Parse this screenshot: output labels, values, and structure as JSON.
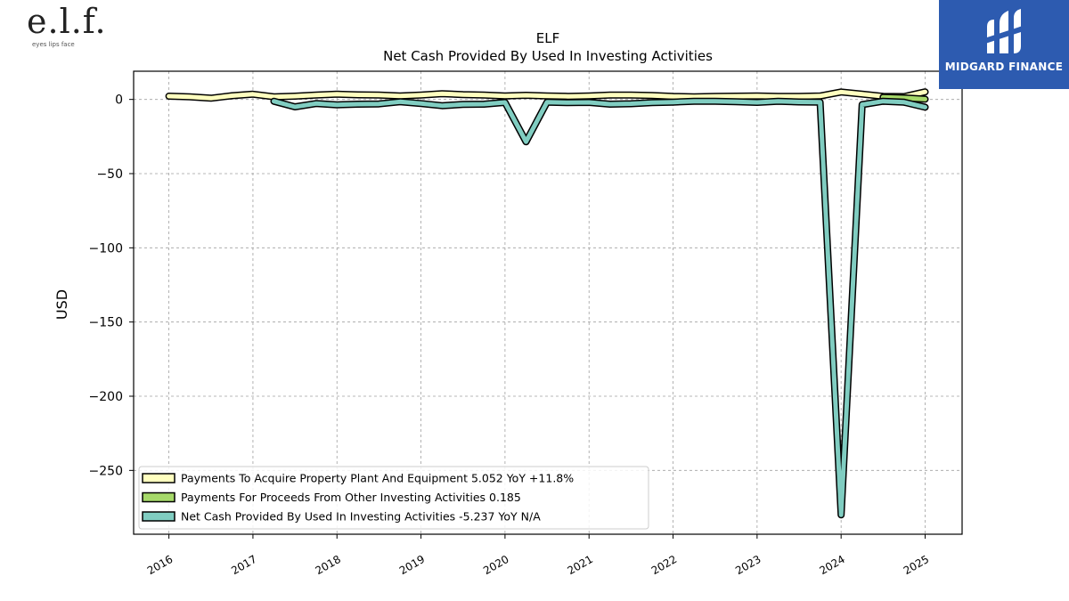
{
  "brand": {
    "company_logo": "e.l.f.",
    "company_tagline": "eyes lips face",
    "publisher_logo": "MIDGARD FINANCE"
  },
  "chart_data": {
    "type": "line",
    "title": "ELF",
    "subtitle": "Net Cash Provided By Used In Investing Activities",
    "ylabel": "USD",
    "xlabel": "",
    "ylim": [
      -293,
      19
    ],
    "xlim": [
      2015.58,
      2025.44
    ],
    "yticks": [
      0,
      -50,
      -100,
      -150,
      -200,
      -250
    ],
    "xticks": [
      2016,
      2017,
      2018,
      2019,
      2020,
      2021,
      2022,
      2023,
      2024,
      2025
    ],
    "grid": true,
    "legend_position": "lower-left",
    "series": [
      {
        "name": "Payments To Acquire Property Plant And Equipment",
        "legend": "Payments To Acquire Property Plant And Equipment  5.052 YoY +11.8%",
        "color": "#ffffbf",
        "x": [
          2016.0,
          2016.25,
          2016.5,
          2016.75,
          2017.0,
          2017.25,
          2017.5,
          2017.75,
          2018.0,
          2018.25,
          2018.5,
          2018.75,
          2019.0,
          2019.25,
          2019.5,
          2019.75,
          2020.0,
          2020.25,
          2020.5,
          2020.75,
          2021.0,
          2021.25,
          2021.5,
          2021.75,
          2022.0,
          2022.25,
          2022.5,
          2022.75,
          2023.0,
          2023.25,
          2023.5,
          2023.75,
          2024.0,
          2024.25,
          2024.5,
          2024.75,
          2025.0
        ],
        "y": [
          2.2,
          1.8,
          0.8,
          2.5,
          3.5,
          1.8,
          2.2,
          2.9,
          3.5,
          3.1,
          3.0,
          2.4,
          3.0,
          3.9,
          3.2,
          3.0,
          2.4,
          2.8,
          2.3,
          2.1,
          2.4,
          2.9,
          3.0,
          2.6,
          2.0,
          1.8,
          2.0,
          2.2,
          2.4,
          2.1,
          2.1,
          2.3,
          5.0,
          3.6,
          2.1,
          1.9,
          5.1
        ]
      },
      {
        "name": "Payments For Proceeds From Other Investing Activities",
        "legend": "Payments For Proceeds From Other Investing Activities  0.185",
        "color": "#a6d96a",
        "x": [
          2024.5,
          2024.75,
          2025.0
        ],
        "y": [
          1.5,
          1.0,
          0.185
        ]
      },
      {
        "name": "Net Cash Provided By Used In Investing Activities",
        "legend": "Net Cash Provided By Used In Investing Activities  -5.237 YoY N/A",
        "color": "#80cdc1",
        "x": [
          2017.25,
          2017.5,
          2017.75,
          2018.0,
          2018.25,
          2018.5,
          2018.75,
          2019.0,
          2019.25,
          2019.5,
          2019.75,
          2020.0,
          2020.25,
          2020.5,
          2020.75,
          2021.0,
          2021.25,
          2021.5,
          2021.75,
          2022.0,
          2022.25,
          2022.5,
          2022.75,
          2023.0,
          2023.25,
          2023.5,
          2023.75,
          2024.0,
          2024.25,
          2024.5,
          2024.75,
          2025.0
        ],
        "y": [
          -1.2,
          -5.0,
          -2.8,
          -3.6,
          -3.2,
          -3.0,
          -1.6,
          -2.8,
          -4.2,
          -3.4,
          -3.2,
          -2.0,
          -28.5,
          -1.8,
          -2.2,
          -2.0,
          -3.2,
          -2.9,
          -2.1,
          -1.8,
          -1.2,
          -1.3,
          -1.5,
          -2.0,
          -1.3,
          -1.7,
          -1.9,
          -280.0,
          -3.5,
          -1.2,
          -1.9,
          -5.237
        ]
      }
    ]
  }
}
